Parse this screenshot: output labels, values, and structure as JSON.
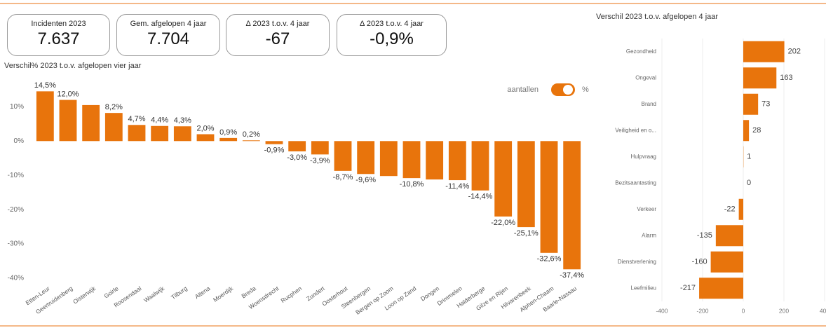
{
  "kpis": [
    {
      "title": "Incidenten 2023",
      "value": "7.637"
    },
    {
      "title": "Gem. afgelopen 4 jaar",
      "value": "7.704"
    },
    {
      "title": "Δ 2023 t.o.v. 4 jaar",
      "value": "-67"
    },
    {
      "title": "Δ 2023 t.o.v. 4 jaar",
      "value": "-0,9%"
    }
  ],
  "toggle": {
    "left": "aantallen",
    "right": "%"
  },
  "chart_data": [
    {
      "type": "bar",
      "orientation": "vertical",
      "title": "Verschil% 2023 t.o.v. afgelopen vier jaar",
      "categories": [
        "Etten-Leur",
        "Geertruidenberg",
        "Oisterwijk",
        "Goirle",
        "Roosendaal",
        "Waalwijk",
        "Tilburg",
        "Altena",
        "Moerdijk",
        "Breda",
        "Woensdrecht",
        "Rucphen",
        "Zundert",
        "Oosterhout",
        "Steenbergen",
        "Bergen op Zoom",
        "Loon op Zand",
        "Dongen",
        "Drimmelen",
        "Halderberge",
        "Gilze en Rijen",
        "Hilvarenbeek",
        "Alphen-Chaam",
        "Baarle-Nassau"
      ],
      "values": [
        14.5,
        12.0,
        10.5,
        8.2,
        4.7,
        4.4,
        4.3,
        2.0,
        0.9,
        0.2,
        -0.9,
        -3.0,
        -3.9,
        -8.7,
        -9.6,
        -10.2,
        -10.8,
        -11.2,
        -11.4,
        -14.4,
        -22.0,
        -25.1,
        -32.6,
        -37.4
      ],
      "value_labels": [
        "14,5%",
        "12,0%",
        null,
        "8,2%",
        "4,7%",
        "4,4%",
        "4,3%",
        "2,0%",
        "0,9%",
        "0,2%",
        "-0,9%",
        "-3,0%",
        "-3,9%",
        "-8,7%",
        "-9,6%",
        null,
        "-10,8%",
        null,
        "-11,4%",
        "-14,4%",
        "-22,0%",
        "-25,1%",
        "-32,6%",
        "-37,4%"
      ],
      "color": "#e8740c",
      "ylim": [
        -40,
        16
      ],
      "yticks": [
        {
          "value": 10,
          "label": "10%"
        },
        {
          "value": 0,
          "label": "0%"
        },
        {
          "value": -10,
          "label": "-10%"
        },
        {
          "value": -20,
          "label": "-20%"
        },
        {
          "value": -30,
          "label": "-30%"
        },
        {
          "value": -40,
          "label": "-40%"
        }
      ],
      "grid": false
    },
    {
      "type": "bar",
      "orientation": "horizontal",
      "title": "Verschil 2023 t.o.v. afgelopen 4 jaar",
      "categories": [
        "Gezondheid",
        "Ongeval",
        "Brand",
        "Veiligheid en o...",
        "Hulpvraag",
        "Bezitsaantasting",
        "Verkeer",
        "Alarm",
        "Dienstverlening",
        "Leefmilieu"
      ],
      "values": [
        202,
        163,
        73,
        28,
        1,
        0,
        -22,
        -135,
        -160,
        -217
      ],
      "color": "#e8740c",
      "xlim": [
        -400,
        400
      ],
      "xticks": [
        -400,
        -200,
        0,
        200,
        400
      ],
      "grid": true
    }
  ]
}
